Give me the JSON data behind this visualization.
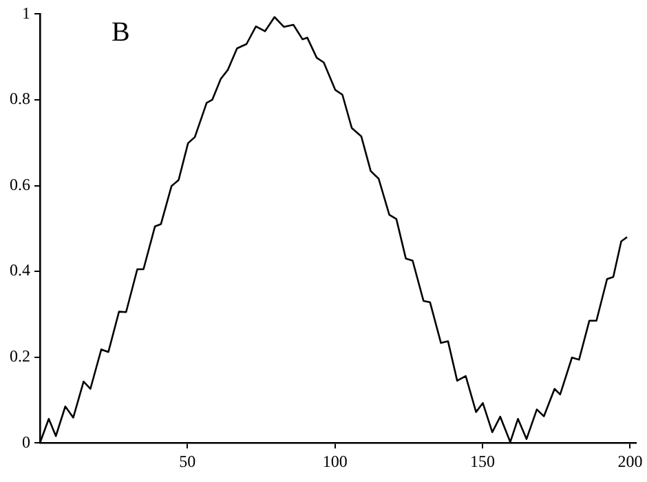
{
  "chart_data": {
    "type": "line",
    "annotations": [
      "B"
    ],
    "xlim": [
      0,
      202
    ],
    "ylim": [
      0,
      1
    ],
    "xticks": [
      50,
      100,
      150,
      200
    ],
    "yticks": [
      0,
      0.2,
      0.4,
      0.6,
      0.8,
      1
    ],
    "grid": false,
    "legend": false,
    "marker": "none",
    "line_style": "solid",
    "series": [
      {
        "color": "#000000",
        "x": [
          0,
          3.0,
          5.4,
          8.6,
          11.3,
          14.8,
          17.1,
          20.8,
          23.2,
          26.8,
          29.2,
          33.0,
          35.1,
          39.0,
          41.0,
          44.6,
          47.0,
          50.2,
          52.5,
          56.5,
          58.4,
          61.3,
          63.7,
          66.8,
          70.0,
          73.2,
          76.3,
          79.5,
          82.7,
          85.9,
          89.0,
          90.6,
          93.8,
          96.2,
          100.1,
          102.5,
          105.7,
          108.9,
          112.1,
          114.8,
          118.4,
          120.8,
          124.0,
          126.3,
          130.0,
          132.2,
          135.9,
          138.3,
          141.4,
          144.3,
          147.8,
          150.1,
          153.3,
          156.0,
          159.4,
          162.0,
          164.9,
          168.4,
          170.8,
          174.4,
          176.3,
          180.3,
          182.7,
          186.2,
          188.6,
          192.2,
          194.3,
          197.0,
          199.0
        ],
        "values": [
          0,
          0.056,
          0.016,
          0.085,
          0.059,
          0.143,
          0.126,
          0.218,
          0.212,
          0.306,
          0.305,
          0.405,
          0.405,
          0.505,
          0.51,
          0.599,
          0.613,
          0.699,
          0.713,
          0.793,
          0.8,
          0.849,
          0.87,
          0.92,
          0.93,
          0.971,
          0.96,
          0.993,
          0.97,
          0.975,
          0.941,
          0.945,
          0.898,
          0.887,
          0.823,
          0.812,
          0.734,
          0.715,
          0.634,
          0.616,
          0.532,
          0.522,
          0.43,
          0.425,
          0.331,
          0.328,
          0.233,
          0.237,
          0.145,
          0.156,
          0.072,
          0.093,
          0.025,
          0.061,
          0.002,
          0.056,
          0.009,
          0.078,
          0.062,
          0.126,
          0.113,
          0.199,
          0.194,
          0.285,
          0.285,
          0.382,
          0.387,
          0.47,
          0.48
        ]
      }
    ]
  }
}
